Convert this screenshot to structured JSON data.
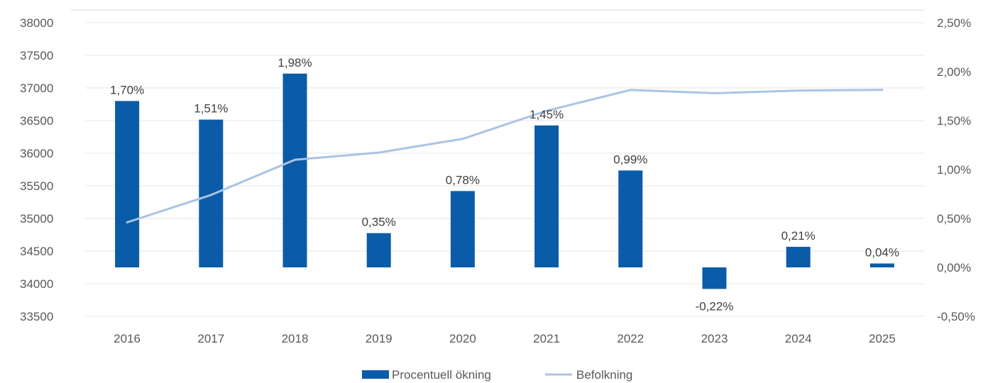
{
  "chart_data": {
    "type": "bar",
    "categories": [
      "2016",
      "2017",
      "2018",
      "2019",
      "2020",
      "2021",
      "2022",
      "2023",
      "2024",
      "2025"
    ],
    "series": [
      {
        "name": "Procentuell ökning",
        "type": "bar",
        "axis": "right",
        "values": [
          1.7,
          1.51,
          1.98,
          0.35,
          0.78,
          1.45,
          0.99,
          -0.22,
          0.21,
          0.04
        ],
        "labels": [
          "1,70%",
          "1,51%",
          "1,98%",
          "0,35%",
          "0,78%",
          "1,45%",
          "0,99%",
          "-0,22%",
          "0,21%",
          "0,04%"
        ],
        "color": "#0b5ca8"
      },
      {
        "name": "Befolkning",
        "type": "line",
        "axis": "left",
        "values": [
          34940,
          35360,
          35900,
          36010,
          36220,
          36650,
          36970,
          36920,
          36960,
          36970
        ],
        "color": "#a9c4e4"
      }
    ],
    "y_left": {
      "ylim": [
        33500,
        38000
      ],
      "ticks": [
        33500,
        34000,
        34500,
        35000,
        35500,
        36000,
        36500,
        37000,
        37500,
        38000
      ],
      "tick_labels": [
        "33500",
        "34000",
        "34500",
        "35000",
        "35500",
        "36000",
        "36500",
        "37000",
        "37500",
        "38000"
      ]
    },
    "y_right": {
      "ylim": [
        -0.5,
        2.5
      ],
      "ticks": [
        -0.5,
        0.0,
        0.5,
        1.0,
        1.5,
        2.0,
        2.5
      ],
      "tick_labels": [
        "-0,50%",
        "0,00%",
        "0,50%",
        "1,00%",
        "1,50%",
        "2,00%",
        "2,50%"
      ]
    },
    "title": "",
    "xlabel": "",
    "grid": true,
    "legend_position": "bottom"
  }
}
